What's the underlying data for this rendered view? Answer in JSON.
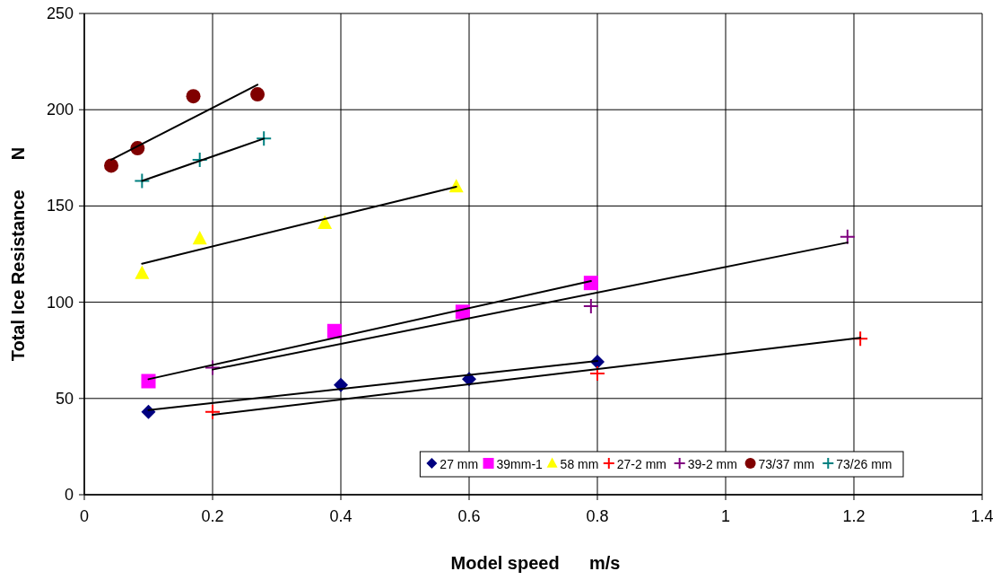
{
  "chart_data": {
    "type": "scatter",
    "xlabel": "Model speed      m/s",
    "ylabel": "Total Ice Resistance      N",
    "xlim": [
      0,
      1.4
    ],
    "ylim": [
      0,
      250
    ],
    "xticks": [
      0,
      0.2,
      0.4,
      0.6,
      0.8,
      1,
      1.2,
      1.4
    ],
    "yticks": [
      0,
      50,
      100,
      150,
      200,
      250
    ],
    "grid": true,
    "legend": "bottom right",
    "series": [
      {
        "name": "27 mm",
        "marker": "diamond",
        "color": "#000080",
        "x": [
          0.1,
          0.4,
          0.6,
          0.8
        ],
        "values": [
          43,
          57,
          60,
          69
        ]
      },
      {
        "name": "39mm-1",
        "marker": "square",
        "color": "#ff00ff",
        "x": [
          0.1,
          0.39,
          0.59,
          0.79
        ],
        "values": [
          59,
          85,
          95,
          110
        ]
      },
      {
        "name": "58 mm",
        "marker": "triangle",
        "color": "#ffff00",
        "x": [
          0.09,
          0.18,
          0.375,
          0.58
        ],
        "values": [
          115,
          133,
          141,
          160
        ]
      },
      {
        "name": "27-2 mm",
        "marker": "cross",
        "color": "#ff0000",
        "x": [
          0.2,
          0.8,
          1.21
        ],
        "values": [
          43,
          63,
          81
        ]
      },
      {
        "name": "39-2 mm",
        "marker": "cross",
        "color": "#800080",
        "x": [
          0.2,
          0.79,
          1.19
        ],
        "values": [
          66,
          98,
          134
        ]
      },
      {
        "name": "73/37 mm",
        "marker": "circle",
        "color": "#800000",
        "x": [
          0.042,
          0.083,
          0.17,
          0.27
        ],
        "values": [
          171,
          180,
          207,
          208
        ]
      },
      {
        "name": "73/26 mm",
        "marker": "cross",
        "color": "#008080",
        "x": [
          0.09,
          0.18,
          0.28
        ],
        "values": [
          163,
          174,
          185
        ]
      },
      {
        "type": "line",
        "marker": "none",
        "color": "#000000",
        "x": [
          0.1,
          0.8
        ],
        "values": [
          44,
          69.5
        ]
      },
      {
        "type": "line",
        "marker": "none",
        "color": "#000000",
        "x": [
          0.1,
          0.79
        ],
        "values": [
          60,
          111
        ]
      },
      {
        "type": "line",
        "marker": "none",
        "color": "#000000",
        "x": [
          0.09,
          0.58
        ],
        "values": [
          120,
          160
        ]
      },
      {
        "type": "line",
        "marker": "none",
        "color": "#000000",
        "x": [
          0.2,
          1.21
        ],
        "values": [
          41.5,
          81.5
        ]
      },
      {
        "type": "line",
        "marker": "none",
        "color": "#000000",
        "x": [
          0.2,
          1.19
        ],
        "values": [
          65,
          131
        ]
      },
      {
        "type": "line",
        "marker": "none",
        "color": "#000000",
        "x": [
          0.042,
          0.27
        ],
        "values": [
          174,
          213
        ]
      },
      {
        "type": "line",
        "marker": "none",
        "color": "#000000",
        "x": [
          0.09,
          0.28
        ],
        "values": [
          163,
          185
        ]
      }
    ]
  }
}
